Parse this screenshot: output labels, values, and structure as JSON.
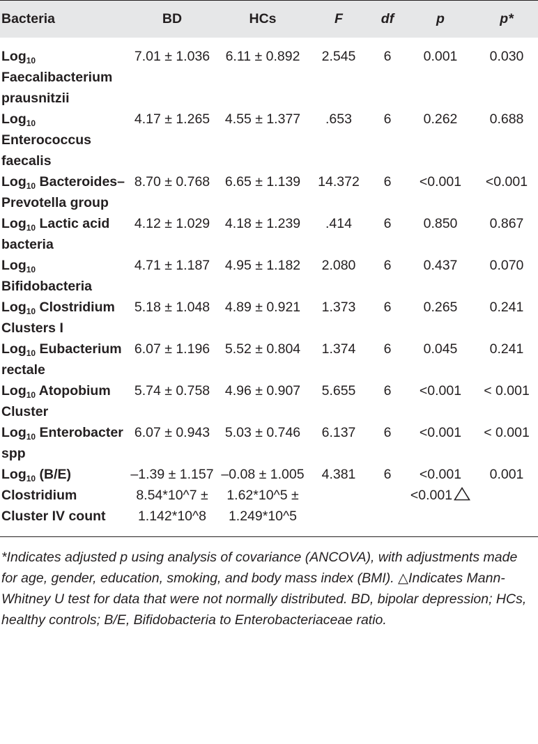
{
  "header": {
    "bacteria": "Bacteria",
    "bd": "BD",
    "hcs": "HCs",
    "f": "F",
    "df": "df",
    "p": "p",
    "p_adj": "p*"
  },
  "rows": [
    {
      "name_prefix": "Log",
      "name_sub": "10",
      "name_rest": "Faecalibacterium prausnitzii",
      "bd": "7.01 ± 1.036",
      "hcs": "6.11 ± 0.892",
      "f": "2.545",
      "df": "6",
      "p": "0.001",
      "p_adj": "0.030"
    },
    {
      "name_prefix": "Log",
      "name_sub": "10",
      "name_rest": "Enterococcus faecalis",
      "bd": "4.17 ± 1.265",
      "hcs": "4.55 ± 1.377",
      "f": ".653",
      "df": "6",
      "p": "0.262",
      "p_adj": "0.688"
    },
    {
      "name_prefix": "Log",
      "name_sub": "10",
      "name_rest": "Bacteroides–Prevotella group",
      "bd": "8.70 ± 0.768",
      "hcs": "6.65 ± 1.139",
      "f": "14.372",
      "df": "6",
      "p": "<0.001",
      "p_adj": "<0.001"
    },
    {
      "name_prefix": "Log",
      "name_sub": "10",
      "name_rest": "Lactic acid bacteria",
      "bd": "4.12 ± 1.029",
      "hcs": "4.18 ± 1.239",
      "f": ".414",
      "df": "6",
      "p": "0.850",
      "p_adj": "0.867"
    },
    {
      "name_prefix": "Log",
      "name_sub": "10",
      "name_rest": "Bifidobacteria",
      "bd": "4.71 ± 1.187",
      "hcs": "4.95 ± 1.182",
      "f": "2.080",
      "df": "6",
      "p": "0.437",
      "p_adj": "0.070"
    },
    {
      "name_prefix": "Log",
      "name_sub": "10",
      "name_rest": "Clostridium Clusters I",
      "bd": "5.18 ± 1.048",
      "hcs": "4.89 ± 0.921",
      "f": "1.373",
      "df": "6",
      "p": "0.265",
      "p_adj": "0.241"
    },
    {
      "name_prefix": "Log",
      "name_sub": "10",
      "name_rest": "Eubacterium rectale",
      "bd": "6.07 ± 1.196",
      "hcs": "5.52 ± 0.804",
      "f": "1.374",
      "df": "6",
      "p": "0.045",
      "p_adj": "0.241"
    },
    {
      "name_prefix": "Log",
      "name_sub": "10",
      "name_rest": "Atopobium Cluster",
      "bd": "5.74 ± 0.758",
      "hcs": "4.96 ± 0.907",
      "f": "5.655",
      "df": "6",
      "p": "<0.001",
      "p_adj": "< 0.001"
    },
    {
      "name_prefix": "Log",
      "name_sub": "10",
      "name_rest": "Enterobacter spp",
      "bd": "6.07 ± 0.943",
      "hcs": "5.03 ± 0.746",
      "f": "6.137",
      "df": "6",
      "p": "<0.001",
      "p_adj": "< 0.001"
    },
    {
      "name_prefix": "Log",
      "name_sub": "10",
      "name_rest": "(B/E)",
      "bd": "–1.39 ± 1.157",
      "hcs": "–0.08 ± 1.005",
      "f": "4.381",
      "df": "6",
      "p": "<0.001",
      "p_adj": "0.001"
    },
    {
      "name_prefix": "Clostridium Cluster IV count",
      "name_sub": "",
      "name_rest": "",
      "bd": "8.54*10^7 ± 1.142*10^8",
      "hcs": "1.62*10^5 ± 1.249*10^5",
      "f": "",
      "df": "",
      "p": "<0.001",
      "p_adj": "",
      "triangle": true
    }
  ],
  "footnote": "*Indicates adjusted p using analysis of covariance (ANCOVA), with adjustments made for age, gender, education, smoking, and body mass index (BMI). △Indicates Mann-Whitney U test for data that were not normally distributed. BD, bipolar depression; HCs, healthy controls; B/E, Bifidobacteria to Enterobacteriaceae ratio.",
  "icons": {
    "triangle": "open-triangle-icon"
  },
  "colors": {
    "header_bg": "#e6e7e8",
    "text": "#231f20"
  }
}
